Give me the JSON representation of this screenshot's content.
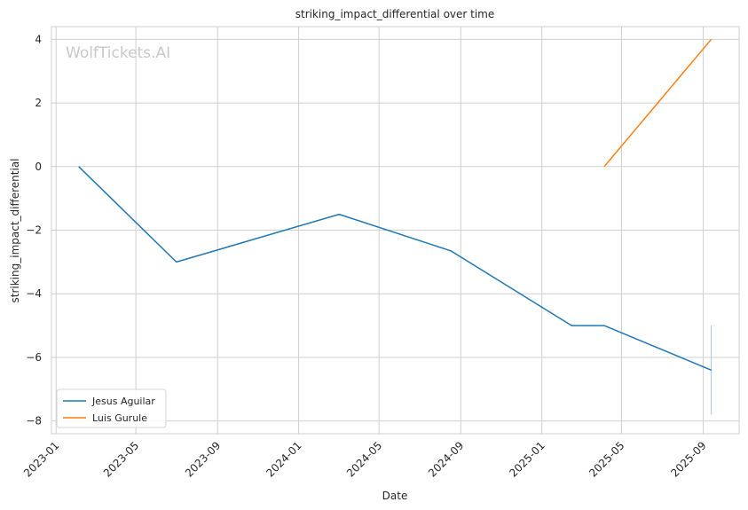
{
  "chart_data": {
    "type": "line",
    "title": "striking_impact_differential over time",
    "xlabel": "Date",
    "ylabel": "striking_impact_differential",
    "watermark": "WolfTickets.AI",
    "x_ticks": [
      "2023-01",
      "2023-05",
      "2023-09",
      "2024-01",
      "2024-05",
      "2024-09",
      "2025-01",
      "2025-05",
      "2025-09"
    ],
    "y_ticks": [
      4,
      2,
      0,
      -2,
      -4,
      -6,
      -8
    ],
    "y_tick_labels": [
      "4",
      "2",
      "0",
      "−2",
      "−4",
      "−6",
      "−8"
    ],
    "xlim": [
      "2022-12-25",
      "2025-10-25"
    ],
    "ylim": [
      -8.4,
      4.4
    ],
    "grid": true,
    "legend_position": "lower-left",
    "series": [
      {
        "name": "Jesus Aguilar",
        "color": "#1f77b4",
        "points": [
          {
            "x": "2023-02-04",
            "y": 0
          },
          {
            "x": "2023-07-01",
            "y": -3
          },
          {
            "x": "2024-03-02",
            "y": -1.5
          },
          {
            "x": "2024-08-17",
            "y": -2.65
          },
          {
            "x": "2025-02-15",
            "y": -5
          },
          {
            "x": "2025-04-05",
            "y": -5
          },
          {
            "x": "2025-09-13",
            "y": -6.4
          }
        ]
      },
      {
        "name": "Luis Gurule",
        "color": "#ff7f0e",
        "points": [
          {
            "x": "2025-04-05",
            "y": 0
          },
          {
            "x": "2025-09-13",
            "y": 4
          }
        ]
      }
    ],
    "error_bars": [
      {
        "x": "2025-09-13",
        "low": -7.8,
        "high": -5.0,
        "color": "#aec7e8"
      }
    ]
  }
}
